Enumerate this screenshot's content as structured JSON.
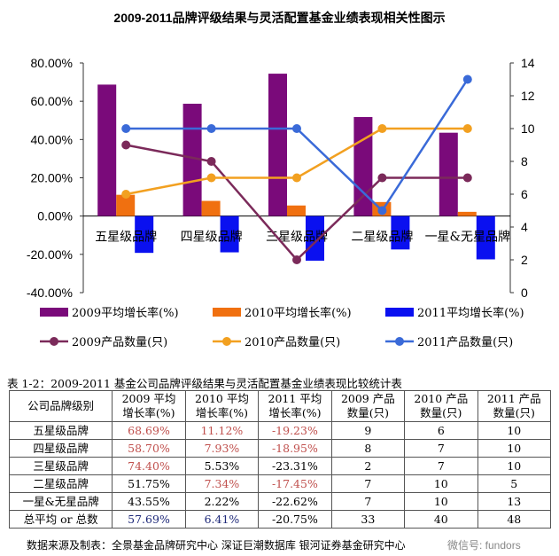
{
  "chart_data": {
    "type": "bar+line",
    "title": "2009-2011品牌评级结果与灵活配置基金业绩表现相关性图示",
    "categories": [
      "五星级品牌",
      "四星级品牌",
      "三星级品牌",
      "二星级品牌",
      "一星&无星品牌"
    ],
    "left_axis": {
      "ylim": [
        -40,
        80
      ],
      "ticks": [
        "80.00%",
        "60.00%",
        "40.00%",
        "20.00%",
        "0.00%",
        "-20.00%",
        "-40.00%"
      ],
      "tick_values": [
        80,
        60,
        40,
        20,
        0,
        -20,
        -40
      ]
    },
    "right_axis": {
      "ylim": [
        0,
        14
      ],
      "ticks": [
        "14",
        "12",
        "10",
        "8",
        "6",
        "4",
        "2",
        "0"
      ],
      "tick_values": [
        14,
        12,
        10,
        8,
        6,
        4,
        2,
        0
      ]
    },
    "bar_series": [
      {
        "name": "2009平均增长率(%)",
        "color": "#7a0a7a",
        "values": [
          68.69,
          58.7,
          74.4,
          51.75,
          43.55
        ]
      },
      {
        "name": "2010平均增长率(%)",
        "color": "#f07010",
        "values": [
          11.12,
          7.93,
          5.53,
          7.34,
          2.22
        ]
      },
      {
        "name": "2011平均增长率(%)",
        "color": "#0a10f0",
        "values": [
          -19.23,
          -18.95,
          -23.31,
          -17.45,
          -22.62
        ]
      }
    ],
    "line_series": [
      {
        "name": "2009产品数量(只)",
        "color": "#7b2a5a",
        "values": [
          9,
          8,
          2,
          7,
          7
        ]
      },
      {
        "name": "2010产品数量(只)",
        "color": "#f2a020",
        "values": [
          6,
          7,
          7,
          10,
          10
        ]
      },
      {
        "name": "2011产品数量(只)",
        "color": "#3a6ad8",
        "values": [
          10,
          10,
          10,
          5,
          13
        ]
      }
    ],
    "legend": "bottom"
  },
  "table": {
    "caption": "表 1-2：2009-2011 基金公司品牌评级结果与灵活配置基金业绩表现比较统计表",
    "headers": [
      "公司品牌级别",
      "2009 平均 增长率(%)",
      "2010 平均 增长率(%)",
      "2011 平均 增长率(%)",
      "2009 产品 数量(只)",
      "2010 产品 数量(只)",
      "2011 产品 数量(只)"
    ],
    "rows": [
      [
        "五星级品牌",
        "68.69%",
        "11.12%",
        "-19.23%",
        "9",
        "6",
        "10"
      ],
      [
        "四星级品牌",
        "58.70%",
        "7.93%",
        "-18.95%",
        "8",
        "7",
        "10"
      ],
      [
        "三星级品牌",
        "74.40%",
        "5.53%",
        "-23.31%",
        "2",
        "7",
        "10"
      ],
      [
        "二星级品牌",
        "51.75%",
        "7.34%",
        "-17.45%",
        "7",
        "10",
        "5"
      ],
      [
        "一星&无星品牌",
        "43.55%",
        "2.22%",
        "-22.62%",
        "7",
        "10",
        "13"
      ],
      [
        "总平均 or 总数",
        "57.69%",
        "6.41%",
        "-20.75%",
        "33",
        "40",
        "48"
      ]
    ],
    "source": "数据来源及制表：全景基金品牌研究中心 深证巨潮数据库 银河证券基金研究中心"
  },
  "watermark": "微信号: fundors"
}
